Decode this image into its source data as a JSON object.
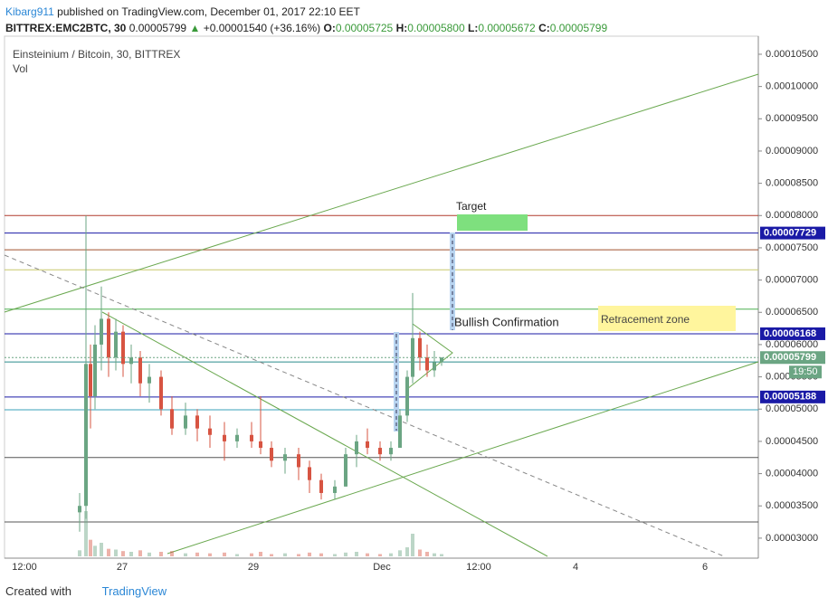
{
  "header": {
    "author": "Kibarg911",
    "published": "published on TradingView.com, December 01, 2017 22:10 EET",
    "symbol": "BITTREX:EMC2BTC, 30",
    "last": "0.00005799",
    "arrow": "▲",
    "change": "+0.00001540 (+36.16%)",
    "o_label": "O:",
    "o": "0.00005725",
    "h_label": "H:",
    "h": "0.00005800",
    "l_label": "L:",
    "l": "0.00005672",
    "c_label": "C:",
    "c": "0.00005799"
  },
  "chart_data": {
    "type": "candlestick",
    "title": "Einsteinium / Bitcoin, 30, BITTREX",
    "subtitle": "Vol",
    "up_color": "#6ba583",
    "down_color": "#d75442",
    "open": [
      3.4e-05,
      3.5e-05,
      5.7e-05,
      5.2e-05,
      6e-05,
      6.4e-05,
      5.8e-05,
      6.2e-05,
      5.7e-05,
      5.8e-05,
      5.4e-05,
      5.5e-05,
      5e-05,
      4.7e-05,
      4.9e-05,
      4.7e-05,
      4.6e-05,
      4.5e-05,
      4.6e-05,
      4.5e-05,
      4.4e-05,
      4.2e-05,
      4.3e-05,
      4.1e-05,
      3.9e-05,
      3.7e-05,
      3.8e-05,
      4.3e-05,
      4.5e-05,
      4.4e-05,
      4.3e-05,
      4.4e-05,
      4.9e-05,
      5.5e-05,
      6.1e-05,
      5.8e-05,
      5.6e-05,
      5.725e-05
    ],
    "high": [
      3.7e-05,
      8e-05,
      6e-05,
      6.3e-05,
      6.9e-05,
      6.5e-05,
      6.4e-05,
      6.3e-05,
      6e-05,
      5.9e-05,
      5.7e-05,
      5.6e-05,
      5.2e-05,
      5.1e-05,
      5e-05,
      4.9e-05,
      4.8e-05,
      4.7e-05,
      4.8e-05,
      5.2e-05,
      4.5e-05,
      4.4e-05,
      4.4e-05,
      4.2e-05,
      4e-05,
      3.9e-05,
      4.4e-05,
      4.6e-05,
      4.7e-05,
      4.5e-05,
      4.5e-05,
      5e-05,
      5.6e-05,
      6.8e-05,
      6.2e-05,
      6e-05,
      5.9e-05,
      5.8e-05
    ],
    "low": [
      3.1e-05,
      3.3e-05,
      4.7e-05,
      5e-05,
      5.6e-05,
      5.5e-05,
      5.6e-05,
      5.5e-05,
      5.4e-05,
      5.2e-05,
      5.1e-05,
      4.9e-05,
      4.6e-05,
      4.6e-05,
      4.5e-05,
      4.4e-05,
      4.2e-05,
      4.4e-05,
      4.4e-05,
      4.3e-05,
      4.1e-05,
      4e-05,
      3.9e-05,
      3.7e-05,
      3.6e-05,
      3.6e-05,
      3.8e-05,
      4.1e-05,
      4.3e-05,
      4.2e-05,
      4.2e-05,
      4.4e-05,
      4.8e-05,
      5.4e-05,
      5.6e-05,
      5.5e-05,
      5.5e-05,
      5.672e-05
    ],
    "close": [
      3.5e-05,
      5.7e-05,
      5.2e-05,
      6e-05,
      6.4e-05,
      5.8e-05,
      6.2e-05,
      5.7e-05,
      5.8e-05,
      5.4e-05,
      5.5e-05,
      5e-05,
      4.7e-05,
      4.9e-05,
      4.7e-05,
      4.6e-05,
      4.5e-05,
      4.6e-05,
      4.5e-05,
      4.4e-05,
      4.2e-05,
      4.3e-05,
      4.1e-05,
      3.9e-05,
      3.7e-05,
      3.8e-05,
      4.3e-05,
      4.5e-05,
      4.4e-05,
      4.3e-05,
      4.4e-05,
      4.9e-05,
      5.5e-05,
      6.1e-05,
      5.8e-05,
      5.6e-05,
      5.725e-05,
      5.799e-05
    ],
    "volume": [
      8,
      60,
      22,
      14,
      18,
      10,
      9,
      7,
      6,
      8,
      5,
      6,
      7,
      4,
      5,
      4,
      5,
      3,
      4,
      6,
      3,
      4,
      3,
      5,
      4,
      3,
      5,
      6,
      4,
      3,
      4,
      8,
      12,
      30,
      9,
      6,
      4,
      3
    ],
    "ylim": [
      2.69e-05,
      0.0001078
    ],
    "yticks": [
      {
        "value": 3e-05,
        "label": "0.00003000"
      },
      {
        "value": 3.5e-05,
        "label": "0.00003500"
      },
      {
        "value": 4e-05,
        "label": "0.00004000"
      },
      {
        "value": 4.5e-05,
        "label": "0.00004500"
      },
      {
        "value": 5e-05,
        "label": "0.00005000"
      },
      {
        "value": 5.5e-05,
        "label": "0.00005500"
      },
      {
        "value": 6e-05,
        "label": "0.00006000"
      },
      {
        "value": 6.5e-05,
        "label": "0.00006500"
      },
      {
        "value": 7e-05,
        "label": "0.00007000"
      },
      {
        "value": 7.5e-05,
        "label": "0.00007500"
      },
      {
        "value": 8e-05,
        "label": "0.00008000"
      },
      {
        "value": 8.5e-05,
        "label": "0.00008500"
      },
      {
        "value": 9e-05,
        "label": "0.00009000"
      },
      {
        "value": 9.5e-05,
        "label": "0.00009500"
      },
      {
        "value": 0.0001,
        "label": "0.00010000"
      },
      {
        "value": 0.000105,
        "label": "0.00010500"
      }
    ],
    "x_labels": [
      "12:00",
      "27",
      "29",
      "Dec",
      "12:00",
      "4",
      "6"
    ],
    "levels": [
      {
        "value": 8e-05,
        "color": "#b03a2e"
      },
      {
        "value": 7.729e-05,
        "color": "#1a1aa6"
      },
      {
        "value": 7.47e-05,
        "color": "#a0522d"
      },
      {
        "value": 7.16e-05,
        "color": "#c8c86a"
      },
      {
        "value": 6.55e-05,
        "color": "#4caf50"
      },
      {
        "value": 6.168e-05,
        "color": "#1a1aa6"
      },
      {
        "value": 5.73e-05,
        "color": "#2a8c8c"
      },
      {
        "value": 5.188e-05,
        "color": "#1a1aa6"
      },
      {
        "value": 4.99e-05,
        "color": "#3aa0b8"
      },
      {
        "value": 4.25e-05,
        "color": "#555555"
      },
      {
        "value": 3.25e-05,
        "color": "#555555"
      }
    ],
    "price_labels": [
      {
        "value": 7.729e-05,
        "label": "0.00007729",
        "color": "#1a1aa6"
      },
      {
        "value": 6.168e-05,
        "label": "0.00006168",
        "color": "#1a1aa6"
      },
      {
        "value": 5.799e-05,
        "label": "0.00005799",
        "color": "#6ba583"
      },
      {
        "value": 5.188e-05,
        "label": "0.00005188",
        "color": "#1a1aa6"
      }
    ],
    "countdown": "19:50",
    "annotations": {
      "target": "Target",
      "bullish": "Bullish Confirmation",
      "retracement": "Retracement zone"
    }
  },
  "footer": {
    "created": "Created with",
    "brand": "TradingView"
  }
}
